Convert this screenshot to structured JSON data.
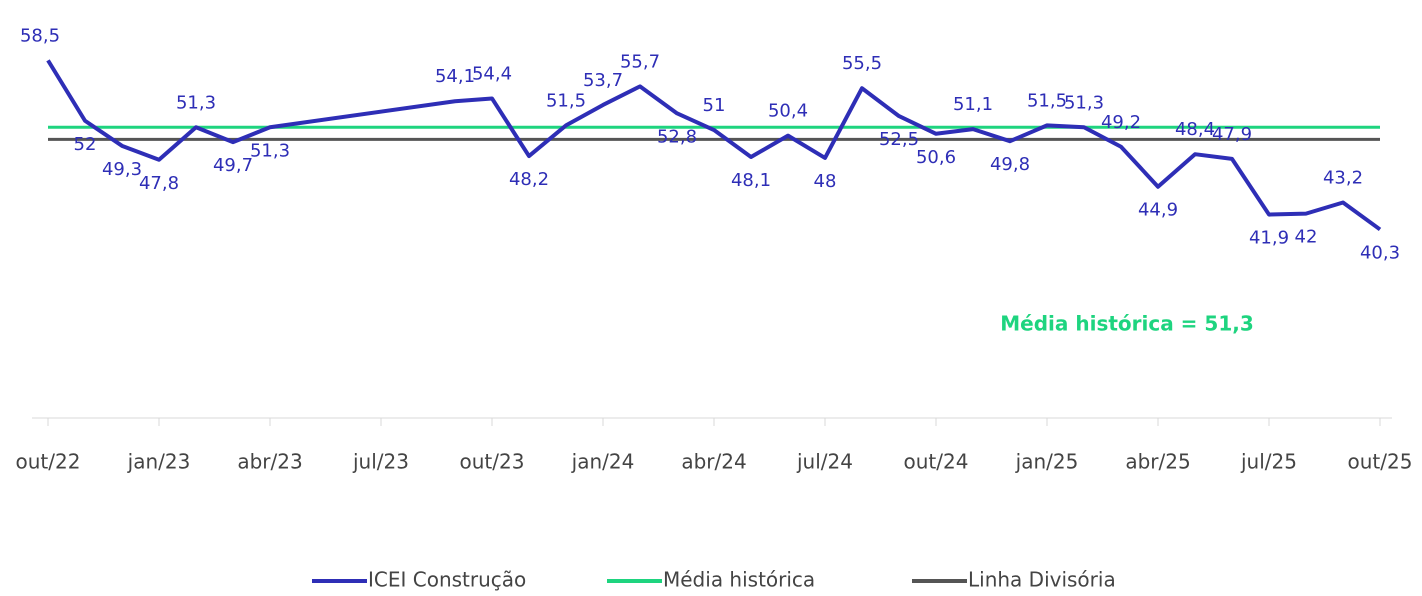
{
  "chart_data": {
    "type": "line",
    "x": [
      "2022-10",
      "2022-11",
      "2022-12",
      "2023-01",
      "2023-02",
      "2023-03",
      "2023-04",
      "2023-09",
      "2023-10",
      "2023-11",
      "2023-12",
      "2024-01",
      "2024-02",
      "2024-03",
      "2024-04",
      "2024-05",
      "2024-06",
      "2024-07",
      "2024-08",
      "2024-09",
      "2024-10",
      "2024-11",
      "2024-12",
      "2025-01",
      "2025-02",
      "2025-03",
      "2025-04",
      "2025-05",
      "2025-06",
      "2025-07",
      "2025-08",
      "2025-09",
      "2025-10"
    ],
    "series": [
      {
        "name": "ICEI Construção",
        "color": "#2e2eb6",
        "values": [
          58.5,
          52,
          49.3,
          47.8,
          51.3,
          49.7,
          51.3,
          54.1,
          54.4,
          48.2,
          51.5,
          53.7,
          55.7,
          52.8,
          51,
          48.1,
          50.4,
          48,
          55.5,
          52.5,
          50.6,
          51.1,
          49.8,
          51.5,
          51.3,
          49.2,
          44.9,
          48.4,
          47.9,
          41.9,
          42,
          43.2,
          40.3
        ],
        "value_labels": [
          "58,5",
          "52",
          "49,3",
          "47,8",
          "51,3",
          "49,7",
          "51,3",
          "54,1",
          "54,4",
          "48,2",
          "51,5",
          "53,7",
          "55,7",
          "52,8",
          "51",
          "48,1",
          "50,4",
          "48",
          "55,5",
          "52,5",
          "50,6",
          "51,1",
          "49,8",
          "51,5",
          "51,3",
          "49,2",
          "44,9",
          "48,4",
          "47,9",
          "41,9",
          "42",
          "43,2",
          "40,3"
        ]
      }
    ],
    "reference_lines": [
      {
        "name": "Média histórica",
        "color": "#1ed47f",
        "value": 51.3
      },
      {
        "name": "Linha Divisória",
        "color": "#555555",
        "value": 50
      }
    ],
    "annotation": "Média histórica = 51,3",
    "xlim": [
      "2022-10",
      "2025-10"
    ],
    "xticks": [
      {
        "value": "2022-10",
        "label": "out/22"
      },
      {
        "value": "2023-01",
        "label": "jan/23"
      },
      {
        "value": "2023-04",
        "label": "abr/23"
      },
      {
        "value": "2023-07",
        "label": "jul/23"
      },
      {
        "value": "2023-10",
        "label": "out/23"
      },
      {
        "value": "2024-01",
        "label": "jan/24"
      },
      {
        "value": "2024-04",
        "label": "abr/24"
      },
      {
        "value": "2024-07",
        "label": "jul/24"
      },
      {
        "value": "2024-10",
        "label": "out/24"
      },
      {
        "value": "2025-01",
        "label": "jan/25"
      },
      {
        "value": "2025-04",
        "label": "abr/25"
      },
      {
        "value": "2025-07",
        "label": "jul/25"
      },
      {
        "value": "2025-10",
        "label": "out/25"
      }
    ],
    "ylim": [
      20,
      65
    ],
    "grid": false,
    "legend": "bottom"
  }
}
